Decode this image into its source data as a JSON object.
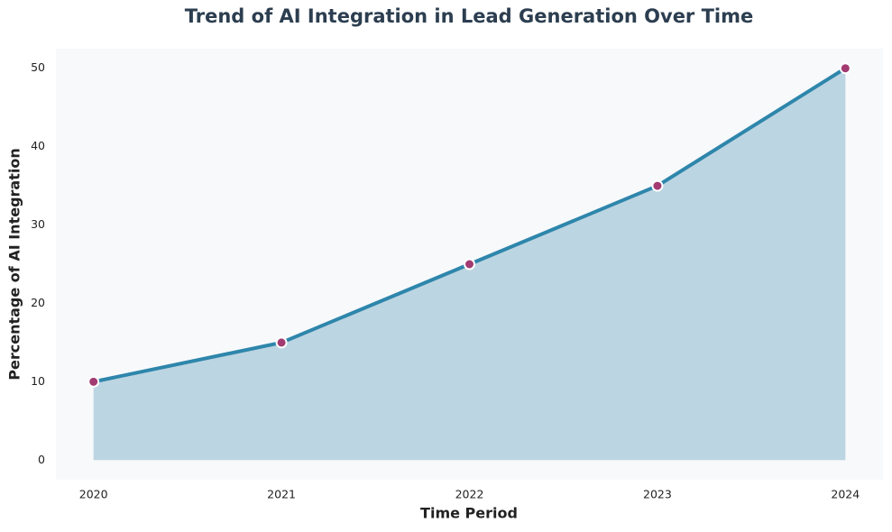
{
  "chart_data": {
    "type": "area",
    "title": "Trend of AI Integration in Lead Generation Over Time",
    "x_label": "Time Period",
    "y_label": "Percentage of AI Integration",
    "x": [
      2020,
      2021,
      2022,
      2023,
      2024
    ],
    "values": [
      10,
      15,
      25,
      35,
      50
    ],
    "xlim": [
      2019.8,
      2024.2
    ],
    "xticks": [
      2020,
      2021,
      2022,
      2023,
      2024
    ],
    "ylim": [
      -2.5,
      52.5
    ],
    "yticks": [
      0,
      10,
      20,
      30,
      40,
      50
    ],
    "line_color": "#2e86ab",
    "fill_color": "#bcd5e2",
    "marker_color": "#a23b72",
    "grid": false
  }
}
